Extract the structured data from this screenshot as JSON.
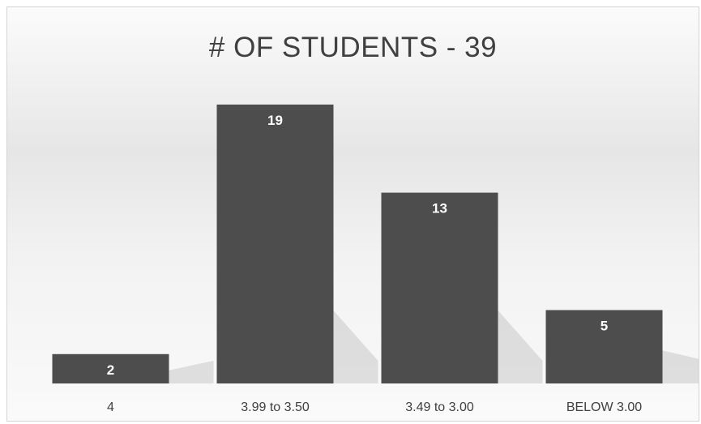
{
  "chart_data": {
    "type": "bar",
    "title": "# OF STUDENTS - 39",
    "categories": [
      "4",
      "3.99 to 3.50",
      "3.49 to 3.00",
      "BELOW 3.00"
    ],
    "values": [
      2,
      19,
      13,
      5
    ],
    "xlabel": "",
    "ylabel": "",
    "ylim": [
      0,
      19
    ],
    "grid": false,
    "legend": "none",
    "data_labels": true,
    "bar_color": "#4d4d4d",
    "label_color": "#ffffff"
  }
}
